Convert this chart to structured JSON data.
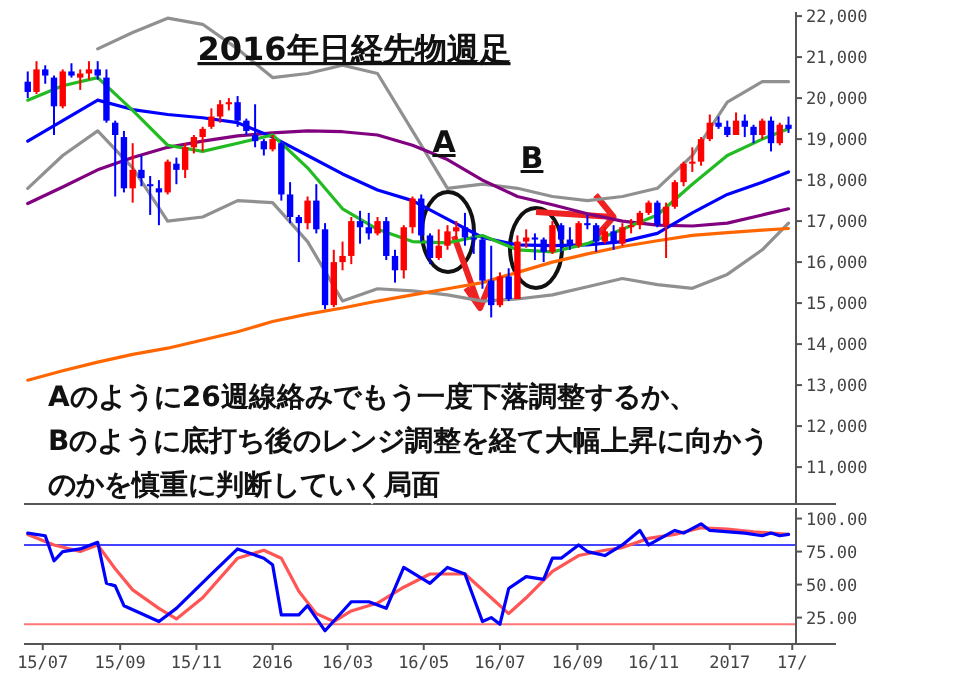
{
  "chart_data": [
    {
      "type": "candlestick",
      "title": "2016年日経先物週足",
      "annotations": [
        "A",
        {
          "text": "B",
          "x": "2016-09-30",
          "y": 17100
        },
        "Aのように26週線絡みでもう一度下落調整するか、",
        "Bのように底打ち後のレンジ調整を経て大幅上昇に向かう",
        "のかを慎重に判断していく局面"
      ],
      "xlim": [
        "2015-06-16",
        "2017-02-23"
      ],
      "ylim": [
        10100,
        22100
      ],
      "tick_labels": "y",
      "yticks": [
        {
          "value": 11000,
          "label": "11,000"
        },
        {
          "value": 12000,
          "label": "12,000"
        },
        {
          "value": 13000,
          "label": "13,000"
        },
        {
          "value": 14000,
          "label": "14,000"
        },
        {
          "value": 15000,
          "label": "15,000"
        },
        {
          "value": 16000,
          "label": "16,000"
        },
        {
          "value": 17000,
          "label": "17,000"
        },
        {
          "value": 18000,
          "label": "18,000"
        },
        {
          "value": 19000,
          "label": "19,000"
        },
        {
          "value": 20000,
          "label": "20,000"
        },
        {
          "value": 21000,
          "label": "21,000"
        },
        {
          "value": 22000,
          "label": "22,000"
        }
      ],
      "series": [
        {
          "type": "line",
          "color": "#909090",
          "x": [
            "2015-08-14",
            "2015-09-11",
            "2015-10-09",
            "2015-11-06",
            "2015-12-04",
            "2016-01-01",
            "2016-01-29",
            "2016-02-26",
            "2016-03-25",
            "2016-04-22",
            "2016-05-20",
            "2016-06-17",
            "2016-07-15",
            "2016-08-12",
            "2016-09-09",
            "2016-10-07",
            "2016-11-04",
            "2016-12-02",
            "2016-12-30",
            "2017-01-27",
            "2017-02-17"
          ],
          "values": [
            21200,
            21600,
            21950,
            21800,
            21200,
            20500,
            20600,
            20800,
            20600,
            19200,
            17800,
            17900,
            17800,
            17600,
            17500,
            17600,
            17800,
            18600,
            19900,
            20400,
            20400
          ]
        },
        {
          "type": "line",
          "color": "#909090",
          "x": [
            "2015-06-19",
            "2015-07-17",
            "2015-08-14",
            "2015-09-11",
            "2015-10-09",
            "2015-11-06",
            "2015-12-04",
            "2016-01-01",
            "2016-01-29",
            "2016-02-26",
            "2016-03-25",
            "2016-04-22",
            "2016-05-20",
            "2016-06-17",
            "2016-07-15",
            "2016-08-12",
            "2016-09-09",
            "2016-10-07",
            "2016-11-04",
            "2016-12-02",
            "2016-12-30",
            "2017-01-27",
            "2017-02-17"
          ],
          "values": [
            17800,
            18600,
            19200,
            18300,
            17000,
            17100,
            17500,
            17450,
            16500,
            15050,
            15350,
            15300,
            15200,
            15050,
            15100,
            15200,
            15400,
            15600,
            15450,
            15360,
            15700,
            16300,
            16950
          ]
        },
        {
          "type": "line",
          "color": "#ff6600",
          "x": [
            "2015-06-19",
            "2015-07-17",
            "2015-08-14",
            "2015-09-11",
            "2015-10-09",
            "2015-11-06",
            "2015-12-04",
            "2016-01-01",
            "2016-01-29",
            "2016-02-26",
            "2016-03-25",
            "2016-04-22",
            "2016-05-20",
            "2016-06-17",
            "2016-07-15",
            "2016-08-12",
            "2016-09-09",
            "2016-10-07",
            "2016-11-04",
            "2016-12-02",
            "2016-12-30",
            "2017-01-27",
            "2017-02-17"
          ],
          "values": [
            13120,
            13350,
            13560,
            13750,
            13900,
            14100,
            14300,
            14550,
            14730,
            14880,
            15050,
            15200,
            15350,
            15500,
            15750,
            16000,
            16200,
            16380,
            16520,
            16650,
            16720,
            16780,
            16820
          ]
        },
        {
          "type": "line",
          "color": "#800080",
          "x": [
            "2015-06-19",
            "2015-07-17",
            "2015-08-14",
            "2015-09-11",
            "2015-10-09",
            "2015-11-06",
            "2015-12-04",
            "2016-01-01",
            "2016-01-29",
            "2016-02-26",
            "2016-03-25",
            "2016-04-22",
            "2016-05-20",
            "2016-06-17",
            "2016-07-15",
            "2016-08-12",
            "2016-09-09",
            "2016-10-07",
            "2016-11-04",
            "2016-12-02",
            "2016-12-30",
            "2017-01-27",
            "2017-02-17"
          ],
          "values": [
            17430,
            17830,
            18250,
            18550,
            18800,
            18950,
            19080,
            19150,
            19200,
            19180,
            19100,
            18850,
            18500,
            18000,
            17600,
            17400,
            17180,
            17000,
            16900,
            16880,
            16950,
            17150,
            17300
          ]
        },
        {
          "type": "line",
          "color": "#0000ff",
          "x": [
            "2015-06-19",
            "2015-07-17",
            "2015-08-14",
            "2015-09-11",
            "2015-10-09",
            "2015-11-06",
            "2015-12-04",
            "2016-01-01",
            "2016-01-29",
            "2016-02-26",
            "2016-03-25",
            "2016-04-22",
            "2016-05-20",
            "2016-06-17",
            "2016-07-15",
            "2016-08-12",
            "2016-09-09",
            "2016-10-07",
            "2016-11-04",
            "2016-12-02",
            "2016-12-30",
            "2017-01-27",
            "2017-02-17"
          ],
          "values": [
            18950,
            19450,
            19950,
            19720,
            19600,
            19520,
            19400,
            19050,
            18600,
            18150,
            17760,
            17500,
            17050,
            16600,
            16420,
            16400,
            16420,
            16500,
            16700,
            17200,
            17650,
            17950,
            18200
          ]
        },
        {
          "type": "line",
          "color": "#22bb22",
          "x": [
            "2015-06-19",
            "2015-07-17",
            "2015-08-14",
            "2015-09-11",
            "2015-10-09",
            "2015-11-06",
            "2015-12-04",
            "2016-01-01",
            "2016-01-29",
            "2016-02-26",
            "2016-03-25",
            "2016-04-22",
            "2016-05-20",
            "2016-06-17",
            "2016-07-15",
            "2016-08-12",
            "2016-09-09",
            "2016-10-07",
            "2016-11-04",
            "2016-12-02",
            "2016-12-30",
            "2017-01-27",
            "2017-02-17"
          ],
          "values": [
            19950,
            20300,
            20500,
            19700,
            18850,
            18700,
            18900,
            19100,
            18300,
            17300,
            16800,
            16500,
            16470,
            16650,
            16300,
            16250,
            16450,
            16800,
            17150,
            17900,
            18600,
            19000,
            19250
          ]
        },
        {
          "x": [
            "2015-06-19",
            "2015-06-26",
            "2015-07-03",
            "2015-07-10",
            "2015-07-17",
            "2015-07-24",
            "2015-07-31",
            "2015-08-07",
            "2015-08-14",
            "2015-08-21",
            "2015-08-28",
            "2015-09-04",
            "2015-09-11",
            "2015-09-18",
            "2015-09-25",
            "2015-10-02",
            "2015-10-09",
            "2015-10-16",
            "2015-10-23",
            "2015-10-30",
            "2015-11-06",
            "2015-11-13",
            "2015-11-20",
            "2015-11-27",
            "2015-12-04",
            "2015-12-11",
            "2015-12-18",
            "2015-12-25",
            "2016-01-01",
            "2016-01-08",
            "2016-01-15",
            "2016-01-22",
            "2016-01-29",
            "2016-02-05",
            "2016-02-12",
            "2016-02-19",
            "2016-02-26",
            "2016-03-04",
            "2016-03-11",
            "2016-03-18",
            "2016-03-25",
            "2016-04-01",
            "2016-04-08",
            "2016-04-15",
            "2016-04-22",
            "2016-04-29",
            "2016-05-06",
            "2016-05-13",
            "2016-05-20",
            "2016-05-27",
            "2016-06-03",
            "2016-06-10",
            "2016-06-17",
            "2016-06-24",
            "2016-07-01",
            "2016-07-08",
            "2016-07-15",
            "2016-07-22",
            "2016-07-29",
            "2016-08-05",
            "2016-08-12",
            "2016-08-19",
            "2016-08-26",
            "2016-09-02",
            "2016-09-09",
            "2016-09-16",
            "2016-09-23",
            "2016-09-30",
            "2016-10-07",
            "2016-10-14",
            "2016-10-21",
            "2016-10-28",
            "2016-11-04",
            "2016-11-11",
            "2016-11-18",
            "2016-11-25",
            "2016-12-02",
            "2016-12-09",
            "2016-12-16",
            "2016-12-23",
            "2016-12-30",
            "2017-01-06",
            "2017-01-13",
            "2017-01-20",
            "2017-01-27",
            "2017-02-03",
            "2017-02-10",
            "2017-02-17"
          ],
          "ohlc": [
            [
              20400,
              20650,
              20000,
              20150
            ],
            [
              20150,
              20900,
              20100,
              20700
            ],
            [
              20700,
              20800,
              20350,
              20550
            ],
            [
              20500,
              20550,
              19100,
              19800
            ],
            [
              19800,
              20700,
              19750,
              20650
            ],
            [
              20650,
              20850,
              20500,
              20550
            ],
            [
              20500,
              20700,
              20200,
              20600
            ],
            [
              20600,
              20900,
              20450,
              20700
            ],
            [
              20700,
              20900,
              20450,
              20550
            ],
            [
              20500,
              20700,
              19400,
              19450
            ],
            [
              19400,
              19450,
              17600,
              19100
            ],
            [
              19050,
              19200,
              17700,
              17800
            ],
            [
              17800,
              18900,
              17450,
              18250
            ],
            [
              18250,
              18600,
              17850,
              18050
            ],
            [
              17900,
              18100,
              17150,
              17850
            ],
            [
              17800,
              18000,
              16900,
              17700
            ],
            [
              17700,
              18500,
              17650,
              18450
            ],
            [
              18400,
              18550,
              17900,
              18250
            ],
            [
              18250,
              18900,
              18050,
              18800
            ],
            [
              18800,
              19100,
              18650,
              19050
            ],
            [
              19050,
              19300,
              18700,
              19250
            ],
            [
              19300,
              19750,
              19250,
              19550
            ],
            [
              19550,
              19950,
              19400,
              19850
            ],
            [
              19850,
              20000,
              19700,
              19900
            ],
            [
              19900,
              20050,
              19300,
              19450
            ],
            [
              19450,
              19500,
              19100,
              19200
            ],
            [
              19100,
              19850,
              18800,
              18950
            ],
            [
              18950,
              19000,
              18600,
              18750
            ],
            [
              18750,
              19100,
              18700,
              19000
            ],
            [
              18900,
              18950,
              17500,
              17650
            ],
            [
              17650,
              17950,
              16950,
              17100
            ],
            [
              17100,
              17150,
              16000,
              16950
            ],
            [
              16950,
              17600,
              16800,
              17500
            ],
            [
              17500,
              17900,
              16700,
              16800
            ],
            [
              16800,
              16950,
              14850,
              14950
            ],
            [
              14950,
              16300,
              14900,
              16000
            ],
            [
              16000,
              16500,
              15800,
              16150
            ],
            [
              16150,
              17100,
              15950,
              17000
            ],
            [
              17000,
              17250,
              16450,
              16850
            ],
            [
              16850,
              17200,
              16550,
              16700
            ],
            [
              16700,
              17100,
              16650,
              17000
            ],
            [
              17000,
              17100,
              16050,
              16150
            ],
            [
              16150,
              16300,
              15500,
              15800
            ],
            [
              15800,
              16900,
              15600,
              16850
            ],
            [
              16850,
              17600,
              16700,
              17550
            ],
            [
              17550,
              17650,
              16500,
              16650
            ],
            [
              16650,
              16700,
              15950,
              16100
            ],
            [
              16100,
              16800,
              16050,
              16400
            ],
            [
              16400,
              16900,
              16300,
              16750
            ],
            [
              16750,
              17000,
              16550,
              16850
            ],
            [
              16850,
              17200,
              16400,
              16600
            ],
            [
              16600,
              16800,
              16200,
              16550
            ],
            [
              16550,
              16600,
              15350,
              15550
            ],
            [
              15550,
              16400,
              14650,
              14950
            ],
            [
              14950,
              15750,
              14900,
              15650
            ],
            [
              15650,
              15850,
              15050,
              15100
            ],
            [
              15100,
              16650,
              15100,
              16500
            ],
            [
              16500,
              16800,
              16350,
              16600
            ],
            [
              16600,
              16700,
              16050,
              16550
            ],
            [
              16550,
              16600,
              16000,
              16250
            ],
            [
              16250,
              17000,
              16200,
              16900
            ],
            [
              16900,
              16950,
              16250,
              16550
            ],
            [
              16550,
              16850,
              16300,
              16400
            ],
            [
              16400,
              17000,
              16350,
              16950
            ],
            [
              16950,
              17150,
              16800,
              16900
            ],
            [
              16900,
              16950,
              16250,
              16500
            ],
            [
              16500,
              16850,
              16450,
              16750
            ],
            [
              16750,
              16900,
              16300,
              16450
            ],
            [
              16450,
              16950,
              16400,
              16850
            ],
            [
              16850,
              17050,
              16700,
              16900
            ],
            [
              16900,
              17250,
              16800,
              17200
            ],
            [
              17200,
              17500,
              17150,
              17450
            ],
            [
              17450,
              17500,
              16850,
              16900
            ],
            [
              16900,
              17450,
              16100,
              17350
            ],
            [
              17350,
              18000,
              17300,
              17950
            ],
            [
              17950,
              18450,
              17850,
              18400
            ],
            [
              18400,
              18800,
              18200,
              18450
            ],
            [
              18450,
              19050,
              18350,
              19000
            ],
            [
              19000,
              19600,
              18950,
              19400
            ],
            [
              19400,
              19550,
              19250,
              19300
            ],
            [
              19300,
              19450,
              19050,
              19100
            ],
            [
              19100,
              19650,
              19100,
              19450
            ],
            [
              19450,
              19600,
              19050,
              19300
            ],
            [
              19300,
              19350,
              18900,
              19100
            ],
            [
              19100,
              19500,
              19000,
              19450
            ],
            [
              19450,
              19550,
              18700,
              18900
            ],
            [
              18900,
              19400,
              18850,
              19350
            ],
            [
              19350,
              19550,
              19150,
              19250
            ]
          ],
          "colors": [
            "#0000ff",
            "#ff0000",
            "#0000ff",
            "#0000ff",
            "#ff0000",
            "#0000ff",
            "#ff0000",
            "#ff0000",
            "#0000ff",
            "#0000ff",
            "#0000ff",
            "#0000ff",
            "#ff0000",
            "#0000ff",
            "#0000ff",
            "#0000ff",
            "#ff0000",
            "#0000ff",
            "#ff0000",
            "#ff0000",
            "#ff0000",
            "#ff0000",
            "#ff0000",
            "#ff0000",
            "#0000ff",
            "#0000ff",
            "#0000ff",
            "#0000ff",
            "#ff0000",
            "#0000ff",
            "#0000ff",
            "#0000ff",
            "#ff0000",
            "#0000ff",
            "#0000ff",
            "#ff0000",
            "#ff0000",
            "#ff0000",
            "#0000ff",
            "#0000ff",
            "#ff0000",
            "#0000ff",
            "#0000ff",
            "#ff0000",
            "#ff0000",
            "#0000ff",
            "#0000ff",
            "#ff0000",
            "#ff0000",
            "#ff0000",
            "#0000ff",
            "#0000ff",
            "#0000ff",
            "#0000ff",
            "#ff0000",
            "#0000ff",
            "#ff0000",
            "#ff0000",
            "#0000ff",
            "#0000ff",
            "#ff0000",
            "#0000ff",
            "#0000ff",
            "#ff0000",
            "#0000ff",
            "#0000ff",
            "#ff0000",
            "#0000ff",
            "#ff0000",
            "#ff0000",
            "#ff0000",
            "#ff0000",
            "#0000ff",
            "#ff0000",
            "#ff0000",
            "#ff0000",
            "#ff0000",
            "#ff0000",
            "#ff0000",
            "#0000ff",
            "#0000ff",
            "#ff0000",
            "#0000ff",
            "#0000ff",
            "#ff0000",
            "#0000ff",
            "#ff0000",
            "#0000ff"
          ]
        }
      ]
    },
    {
      "type": "line",
      "xlim": [
        "2015-06-16",
        "2017-02-23"
      ],
      "ylim": [
        5,
        108
      ],
      "xticks": [
        {
          "value": "2015-07-01",
          "label": "15/07"
        },
        {
          "value": "2015-09-01",
          "label": "15/09"
        },
        {
          "value": "2015-11-01",
          "label": "15/11"
        },
        {
          "value": "2016-01-01",
          "label": "2016"
        },
        {
          "value": "2016-03-01",
          "label": "16/03"
        },
        {
          "value": "2016-05-01",
          "label": "16/05"
        },
        {
          "value": "2016-07-01",
          "label": "16/07"
        },
        {
          "value": "2016-09-01",
          "label": "16/09"
        },
        {
          "value": "2016-11-01",
          "label": "16/11"
        },
        {
          "value": "2017-01-01",
          "label": "2017"
        },
        {
          "value": "2017-02-20",
          "label": "17/"
        }
      ],
      "yticks": [
        {
          "value": 25,
          "label": "25.00"
        },
        {
          "value": 50,
          "label": "50.00"
        },
        {
          "value": 75,
          "label": "75.00"
        },
        {
          "value": 100,
          "label": "100.00"
        }
      ],
      "ref_lines": [
        {
          "axis": "y",
          "value": 80,
          "color": "#4444ff"
        },
        {
          "axis": "y",
          "value": 20,
          "color": "#ff7777"
        }
      ],
      "series": [
        {
          "color": "#ff5555",
          "x": [
            "2015-06-19",
            "2015-07-10",
            "2015-07-31",
            "2015-08-14",
            "2015-08-28",
            "2015-09-11",
            "2015-10-02",
            "2015-10-16",
            "2015-11-06",
            "2015-12-04",
            "2015-12-25",
            "2016-01-08",
            "2016-01-22",
            "2016-02-05",
            "2016-02-19",
            "2016-03-04",
            "2016-03-25",
            "2016-04-15",
            "2016-05-06",
            "2016-05-20",
            "2016-06-03",
            "2016-06-24",
            "2016-07-08",
            "2016-07-22",
            "2016-08-12",
            "2016-09-02",
            "2016-09-23",
            "2016-10-07",
            "2016-10-28",
            "2016-11-18",
            "2016-12-09",
            "2016-12-30",
            "2017-01-20",
            "2017-02-17"
          ],
          "values": [
            88,
            80,
            75,
            80,
            62,
            46,
            32,
            24,
            40,
            70,
            76,
            70,
            45,
            28,
            22,
            30,
            36,
            48,
            58,
            58,
            58,
            40,
            28,
            40,
            60,
            72,
            76,
            78,
            85,
            88,
            93,
            92,
            90,
            88
          ]
        },
        {
          "color": "#0000ff",
          "x": [
            "2015-06-19",
            "2015-07-03",
            "2015-07-10",
            "2015-07-17",
            "2015-07-31",
            "2015-08-14",
            "2015-08-21",
            "2015-08-28",
            "2015-09-04",
            "2015-10-02",
            "2015-10-16",
            "2015-11-13",
            "2015-12-04",
            "2015-12-25",
            "2016-01-01",
            "2016-01-08",
            "2016-01-22",
            "2016-01-29",
            "2016-02-12",
            "2016-03-04",
            "2016-03-18",
            "2016-04-01",
            "2016-04-15",
            "2016-05-06",
            "2016-05-20",
            "2016-06-03",
            "2016-06-17",
            "2016-06-24",
            "2016-07-01",
            "2016-07-08",
            "2016-07-22",
            "2016-08-05",
            "2016-08-12",
            "2016-08-19",
            "2016-09-02",
            "2016-09-09",
            "2016-09-23",
            "2016-10-07",
            "2016-10-21",
            "2016-10-28",
            "2016-11-18",
            "2016-11-25",
            "2016-12-09",
            "2016-12-16",
            "2017-01-13",
            "2017-01-27",
            "2017-02-03",
            "2017-02-10",
            "2017-02-17"
          ],
          "values": [
            89,
            87,
            68,
            75,
            77,
            82,
            51,
            49,
            34,
            22,
            32,
            58,
            77,
            70,
            65,
            27,
            27,
            34,
            15,
            37,
            37,
            32,
            63,
            51,
            63,
            58,
            22,
            25,
            20,
            47,
            56,
            54,
            70,
            70,
            80,
            75,
            72,
            80,
            91,
            80,
            91,
            89,
            96,
            91,
            89,
            87,
            89,
            87,
            88
          ]
        }
      ]
    }
  ]
}
